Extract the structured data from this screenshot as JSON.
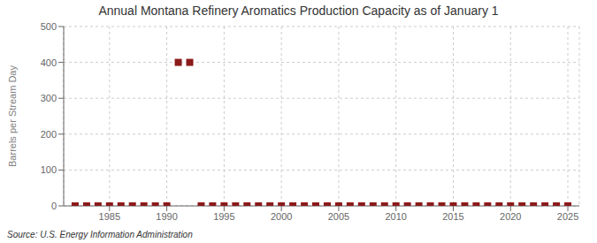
{
  "chart_data": {
    "type": "scatter",
    "title": "Annual Montana Refinery Aromatics Production Capacity as of January 1",
    "ylabel": "Barrels per Stream Day",
    "annotations": [
      "Source: U.S. Energy Information Administration"
    ],
    "x": [
      1982,
      1983,
      1984,
      1985,
      1986,
      1987,
      1988,
      1989,
      1990,
      1991,
      1992,
      1993,
      1994,
      1995,
      1996,
      1997,
      1998,
      1999,
      2000,
      2001,
      2002,
      2003,
      2004,
      2005,
      2006,
      2007,
      2008,
      2009,
      2010,
      2011,
      2012,
      2013,
      2014,
      2015,
      2016,
      2017,
      2018,
      2019,
      2020,
      2021,
      2022,
      2023,
      2024,
      2025
    ],
    "values": [
      0,
      0,
      0,
      0,
      0,
      0,
      0,
      0,
      0,
      400,
      400,
      0,
      0,
      0,
      0,
      0,
      0,
      0,
      0,
      0,
      0,
      0,
      0,
      0,
      0,
      0,
      0,
      0,
      0,
      0,
      0,
      0,
      0,
      0,
      0,
      0,
      0,
      0,
      0,
      0,
      0,
      0,
      0,
      0
    ],
    "color": "#8b1a1a",
    "marker": "square",
    "xlim": [
      1981,
      2026
    ],
    "xticks": [
      1985,
      1990,
      1995,
      2000,
      2005,
      2010,
      2015,
      2020,
      2025
    ],
    "ylim": [
      0,
      500
    ],
    "yticks": [
      0,
      100,
      200,
      300,
      400,
      500
    ],
    "grid": true
  }
}
